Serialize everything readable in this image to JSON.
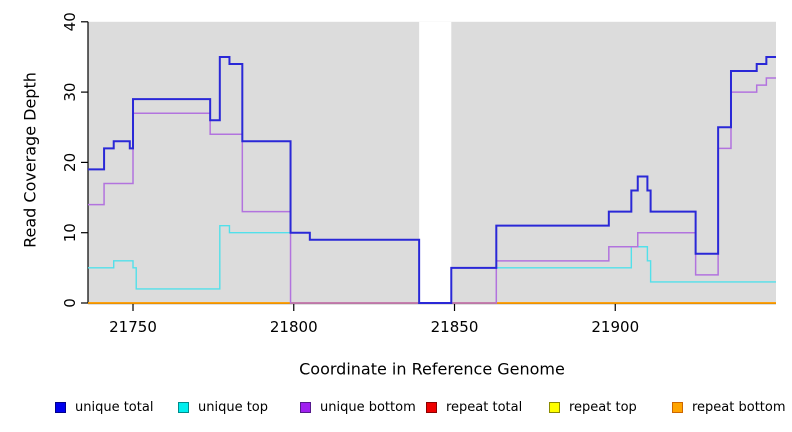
{
  "figure": {
    "xlabel": "Coordinate in Reference Genome",
    "ylabel": "Read Coverage Depth"
  },
  "chart_data": {
    "type": "line",
    "subtype": "step-coverage-plot",
    "title": "",
    "xlabel": "Coordinate in Reference Genome",
    "ylabel": "Read Coverage Depth",
    "x_range": [
      21736,
      21950
    ],
    "y_range": [
      0,
      40
    ],
    "x_ticks": [
      21750,
      21800,
      21850,
      21900
    ],
    "y_ticks": [
      0,
      10,
      20,
      30,
      40
    ],
    "grid": false,
    "plot_background": "#dcdcdc",
    "gap_region": {
      "from": 21839,
      "to": 21849,
      "fill": "#ffffff"
    },
    "axis_color": "#000000",
    "series": [
      {
        "name": "repeat total",
        "color": "#dd0000",
        "width": 1.2,
        "steps": [
          [
            21736,
            0
          ]
        ]
      },
      {
        "name": "repeat top",
        "color": "#eeee00",
        "width": 1.2,
        "steps": [
          [
            21736,
            0
          ]
        ]
      },
      {
        "name": "repeat bottom",
        "color": "#ff9e00",
        "width": 1.8,
        "steps": [
          [
            21736,
            0
          ]
        ]
      },
      {
        "name": "unique top",
        "color": "#52e0ea",
        "width": 1.4,
        "steps": [
          [
            21736,
            5
          ],
          [
            21744,
            6
          ],
          [
            21750,
            5
          ],
          [
            21751,
            2
          ],
          [
            21777,
            11
          ],
          [
            21780,
            10
          ],
          [
            21805,
            9
          ],
          [
            21839,
            0
          ],
          [
            21849,
            5
          ],
          [
            21905,
            8
          ],
          [
            21910,
            6
          ],
          [
            21911,
            3
          ]
        ]
      },
      {
        "name": "unique bottom",
        "color": "#b273de",
        "width": 1.5,
        "steps": [
          [
            21736,
            14
          ],
          [
            21741,
            17
          ],
          [
            21750,
            27
          ],
          [
            21774,
            24
          ],
          [
            21784,
            13
          ],
          [
            21799,
            0
          ],
          [
            21863,
            6
          ],
          [
            21898,
            8
          ],
          [
            21907,
            10
          ],
          [
            21925,
            4
          ],
          [
            21932,
            22
          ],
          [
            21936,
            30
          ],
          [
            21944,
            31
          ],
          [
            21947,
            32
          ]
        ]
      },
      {
        "name": "unique total",
        "color": "#2a28d7",
        "width": 2,
        "steps": [
          [
            21736,
            19
          ],
          [
            21741,
            22
          ],
          [
            21744,
            23
          ],
          [
            21749,
            22
          ],
          [
            21750,
            29
          ],
          [
            21774,
            26
          ],
          [
            21777,
            35
          ],
          [
            21780,
            34
          ],
          [
            21784,
            23
          ],
          [
            21799,
            10
          ],
          [
            21805,
            9
          ],
          [
            21839,
            0
          ],
          [
            21849,
            5
          ],
          [
            21863,
            11
          ],
          [
            21898,
            13
          ],
          [
            21905,
            16
          ],
          [
            21907,
            18
          ],
          [
            21910,
            16
          ],
          [
            21911,
            13
          ],
          [
            21925,
            7
          ],
          [
            21932,
            25
          ],
          [
            21936,
            33
          ],
          [
            21944,
            34
          ],
          [
            21947,
            35
          ]
        ]
      }
    ],
    "legend": {
      "position": "bottom",
      "entries": [
        {
          "label": "unique total",
          "fill": "#0000ee",
          "border": "#00008b"
        },
        {
          "label": "unique top",
          "fill": "#00eeee",
          "border": "#008b8b"
        },
        {
          "label": "unique bottom",
          "fill": "#a020f0",
          "border": "#551a8b"
        },
        {
          "label": "repeat total",
          "fill": "#ee0000",
          "border": "#8b0000"
        },
        {
          "label": "repeat top",
          "fill": "#ffff00",
          "border": "#8b8b00"
        },
        {
          "label": "repeat bottom",
          "fill": "#ffa500",
          "border": "#cd6600"
        }
      ]
    }
  }
}
